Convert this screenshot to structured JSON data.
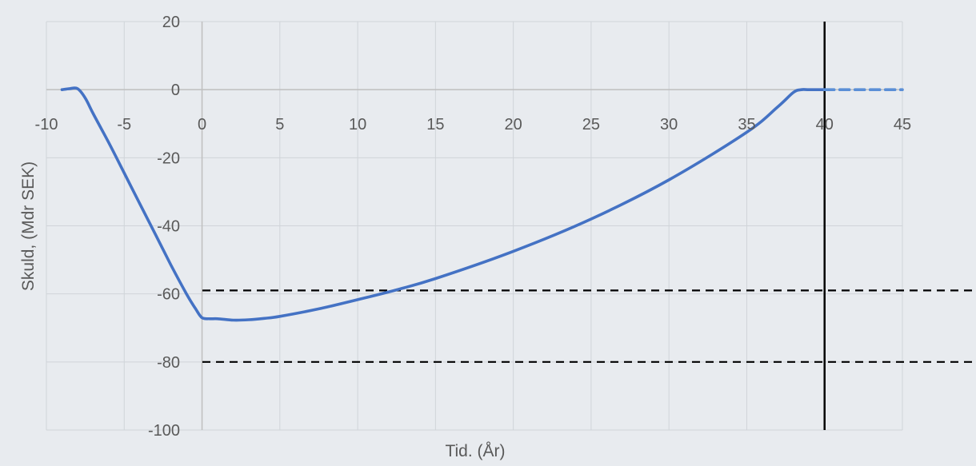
{
  "chart_data": {
    "type": "line",
    "title": "",
    "xlabel": "Tid. (År)",
    "ylabel": "Skuld, (Mdr SEK)",
    "xlim": [
      -10,
      45
    ],
    "ylim": [
      -100,
      20
    ],
    "x_ticks": [
      -10,
      -5,
      0,
      5,
      10,
      15,
      20,
      25,
      30,
      35,
      40,
      45
    ],
    "y_ticks": [
      20,
      0,
      -20,
      -40,
      -60,
      -80,
      -100
    ],
    "grid": true,
    "colors": {
      "background": "#e8ebef",
      "grid": "#d0d4d9",
      "line": "#4472c4",
      "projection": "#5b8fd6",
      "reference": "#000000",
      "text": "#595959"
    },
    "series": [
      {
        "style": "solid",
        "x": [
          -9.0,
          -8.5,
          -8.0,
          -7.5,
          -7.0,
          -6.0,
          -5.0,
          -4.0,
          -3.0,
          -2.0,
          -1.0,
          -0.4,
          0.0,
          0.5,
          1.0,
          2.0,
          3.0,
          4.0,
          5.0,
          7.5,
          10.0,
          12.5,
          15.0,
          20.0,
          25.0,
          30.0,
          35.0,
          37.0,
          38.0,
          38.5,
          39.0,
          40.0
        ],
        "y": [
          0.0,
          0.3,
          0.3,
          -2.5,
          -7.0,
          -15.5,
          -24.5,
          -33.5,
          -42.5,
          -51.5,
          -60.0,
          -64.5,
          -67.0,
          -67.3,
          -67.3,
          -67.7,
          -67.6,
          -67.2,
          -66.6,
          -64.4,
          -61.7,
          -58.8,
          -55.5,
          -47.5,
          -38.0,
          -26.5,
          -12.5,
          -5.0,
          -0.8,
          0.0,
          0.0,
          0.0
        ]
      },
      {
        "style": "dashed",
        "x": [
          40.0,
          45.0
        ],
        "y": [
          0.0,
          0.0
        ]
      }
    ],
    "reference_lines": [
      {
        "orientation": "horizontal",
        "value": -59,
        "style": "dashed"
      },
      {
        "orientation": "horizontal",
        "value": -80,
        "style": "dashed"
      },
      {
        "orientation": "vertical",
        "value": 40,
        "style": "solid"
      }
    ]
  }
}
